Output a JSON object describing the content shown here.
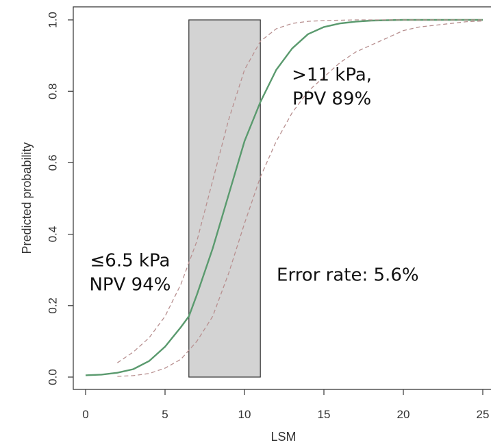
{
  "chart_data": {
    "type": "line",
    "title": "",
    "xlabel": "LSM",
    "ylabel": "Predicted probability",
    "xlim": [
      0,
      25
    ],
    "ylim": [
      0,
      1
    ],
    "x_ticks": [
      0,
      5,
      10,
      15,
      20,
      25
    ],
    "x_tick_labels": [
      "0",
      "5",
      "10",
      "15",
      "20",
      "25"
    ],
    "y_ticks": [
      0,
      0.2,
      0.4,
      0.6,
      0.8,
      1
    ],
    "y_tick_labels": [
      "0.0",
      "0.2",
      "0.4",
      "0.6",
      "0.8",
      "1.0"
    ],
    "grid": false,
    "series": [
      {
        "role": "fit",
        "color": "#5a9a6e",
        "style": "solid",
        "x": [
          0,
          1,
          2,
          3,
          4,
          5,
          6,
          6.5,
          7,
          8,
          9,
          10,
          11,
          12,
          13,
          14,
          15,
          16,
          17,
          18,
          19,
          20,
          22,
          25
        ],
        "y": [
          0.005,
          0.007,
          0.012,
          0.022,
          0.045,
          0.085,
          0.14,
          0.17,
          0.23,
          0.36,
          0.51,
          0.66,
          0.77,
          0.86,
          0.92,
          0.96,
          0.98,
          0.99,
          0.995,
          0.998,
          0.999,
          1.0,
          1.0,
          1.0
        ]
      },
      {
        "role": "upper-bound",
        "color": "#b89090",
        "style": "dashed",
        "x": [
          2,
          3,
          4,
          5,
          6,
          7,
          8,
          9,
          10,
          11,
          12,
          13,
          14,
          15,
          16,
          17,
          18,
          20,
          22,
          25
        ],
        "y": [
          0.04,
          0.07,
          0.11,
          0.17,
          0.26,
          0.38,
          0.55,
          0.72,
          0.86,
          0.94,
          0.975,
          0.99,
          0.996,
          0.998,
          0.999,
          1.0,
          1.0,
          1.0,
          1.0,
          1.0
        ]
      },
      {
        "role": "lower-bound",
        "color": "#b89090",
        "style": "dashed",
        "x": [
          2,
          3,
          4,
          5,
          6,
          7,
          8,
          9,
          10,
          11,
          12,
          13,
          14,
          15,
          16,
          17,
          18,
          19,
          20,
          21,
          22,
          23,
          24,
          25
        ],
        "y": [
          0.002,
          0.004,
          0.01,
          0.025,
          0.05,
          0.1,
          0.17,
          0.29,
          0.43,
          0.56,
          0.66,
          0.74,
          0.8,
          0.84,
          0.88,
          0.91,
          0.93,
          0.95,
          0.97,
          0.98,
          0.985,
          0.99,
          0.995,
          0.997
        ]
      }
    ],
    "shaded_region": {
      "x_start": 6.5,
      "x_end": 11,
      "y_start": 0,
      "y_end": 1,
      "fill": "#d3d3d3",
      "stroke": "#333333"
    },
    "annotations": [
      {
        "lines": [
          ">11 kPa,",
          "PPV 89%"
        ],
        "x": 15.5,
        "y": 0.83
      },
      {
        "lines": [
          "≤6.5 kPa",
          "NPV 94%"
        ],
        "x": 2.8,
        "y": 0.31
      },
      {
        "lines": [
          "Error rate: 5.6%"
        ],
        "x": 16.5,
        "y": 0.27
      }
    ]
  }
}
